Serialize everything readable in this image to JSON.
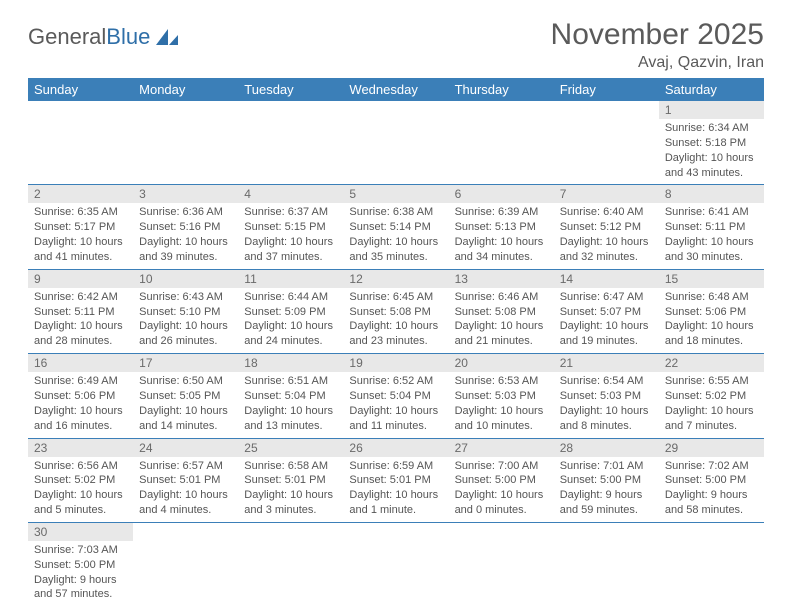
{
  "logo": {
    "text1": "General",
    "text2": "Blue"
  },
  "title": "November 2025",
  "location": "Avaj, Qazvin, Iran",
  "weekdays": [
    "Sunday",
    "Monday",
    "Tuesday",
    "Wednesday",
    "Thursday",
    "Friday",
    "Saturday"
  ],
  "colors": {
    "header_bg": "#3b7fb8",
    "header_text": "#ffffff",
    "daynum_bg": "#e8e8e8",
    "rule": "#3b7fb8",
    "title_color": "#5a5a5a"
  },
  "leading_blanks": 6,
  "days": [
    {
      "n": 1,
      "sunrise": "6:34 AM",
      "sunset": "5:18 PM",
      "daylight": "10 hours and 43 minutes."
    },
    {
      "n": 2,
      "sunrise": "6:35 AM",
      "sunset": "5:17 PM",
      "daylight": "10 hours and 41 minutes."
    },
    {
      "n": 3,
      "sunrise": "6:36 AM",
      "sunset": "5:16 PM",
      "daylight": "10 hours and 39 minutes."
    },
    {
      "n": 4,
      "sunrise": "6:37 AM",
      "sunset": "5:15 PM",
      "daylight": "10 hours and 37 minutes."
    },
    {
      "n": 5,
      "sunrise": "6:38 AM",
      "sunset": "5:14 PM",
      "daylight": "10 hours and 35 minutes."
    },
    {
      "n": 6,
      "sunrise": "6:39 AM",
      "sunset": "5:13 PM",
      "daylight": "10 hours and 34 minutes."
    },
    {
      "n": 7,
      "sunrise": "6:40 AM",
      "sunset": "5:12 PM",
      "daylight": "10 hours and 32 minutes."
    },
    {
      "n": 8,
      "sunrise": "6:41 AM",
      "sunset": "5:11 PM",
      "daylight": "10 hours and 30 minutes."
    },
    {
      "n": 9,
      "sunrise": "6:42 AM",
      "sunset": "5:11 PM",
      "daylight": "10 hours and 28 minutes."
    },
    {
      "n": 10,
      "sunrise": "6:43 AM",
      "sunset": "5:10 PM",
      "daylight": "10 hours and 26 minutes."
    },
    {
      "n": 11,
      "sunrise": "6:44 AM",
      "sunset": "5:09 PM",
      "daylight": "10 hours and 24 minutes."
    },
    {
      "n": 12,
      "sunrise": "6:45 AM",
      "sunset": "5:08 PM",
      "daylight": "10 hours and 23 minutes."
    },
    {
      "n": 13,
      "sunrise": "6:46 AM",
      "sunset": "5:08 PM",
      "daylight": "10 hours and 21 minutes."
    },
    {
      "n": 14,
      "sunrise": "6:47 AM",
      "sunset": "5:07 PM",
      "daylight": "10 hours and 19 minutes."
    },
    {
      "n": 15,
      "sunrise": "6:48 AM",
      "sunset": "5:06 PM",
      "daylight": "10 hours and 18 minutes."
    },
    {
      "n": 16,
      "sunrise": "6:49 AM",
      "sunset": "5:06 PM",
      "daylight": "10 hours and 16 minutes."
    },
    {
      "n": 17,
      "sunrise": "6:50 AM",
      "sunset": "5:05 PM",
      "daylight": "10 hours and 14 minutes."
    },
    {
      "n": 18,
      "sunrise": "6:51 AM",
      "sunset": "5:04 PM",
      "daylight": "10 hours and 13 minutes."
    },
    {
      "n": 19,
      "sunrise": "6:52 AM",
      "sunset": "5:04 PM",
      "daylight": "10 hours and 11 minutes."
    },
    {
      "n": 20,
      "sunrise": "6:53 AM",
      "sunset": "5:03 PM",
      "daylight": "10 hours and 10 minutes."
    },
    {
      "n": 21,
      "sunrise": "6:54 AM",
      "sunset": "5:03 PM",
      "daylight": "10 hours and 8 minutes."
    },
    {
      "n": 22,
      "sunrise": "6:55 AM",
      "sunset": "5:02 PM",
      "daylight": "10 hours and 7 minutes."
    },
    {
      "n": 23,
      "sunrise": "6:56 AM",
      "sunset": "5:02 PM",
      "daylight": "10 hours and 5 minutes."
    },
    {
      "n": 24,
      "sunrise": "6:57 AM",
      "sunset": "5:01 PM",
      "daylight": "10 hours and 4 minutes."
    },
    {
      "n": 25,
      "sunrise": "6:58 AM",
      "sunset": "5:01 PM",
      "daylight": "10 hours and 3 minutes."
    },
    {
      "n": 26,
      "sunrise": "6:59 AM",
      "sunset": "5:01 PM",
      "daylight": "10 hours and 1 minute."
    },
    {
      "n": 27,
      "sunrise": "7:00 AM",
      "sunset": "5:00 PM",
      "daylight": "10 hours and 0 minutes."
    },
    {
      "n": 28,
      "sunrise": "7:01 AM",
      "sunset": "5:00 PM",
      "daylight": "9 hours and 59 minutes."
    },
    {
      "n": 29,
      "sunrise": "7:02 AM",
      "sunset": "5:00 PM",
      "daylight": "9 hours and 58 minutes."
    },
    {
      "n": 30,
      "sunrise": "7:03 AM",
      "sunset": "5:00 PM",
      "daylight": "9 hours and 57 minutes."
    }
  ],
  "labels": {
    "sunrise": "Sunrise:",
    "sunset": "Sunset:",
    "daylight": "Daylight:"
  }
}
